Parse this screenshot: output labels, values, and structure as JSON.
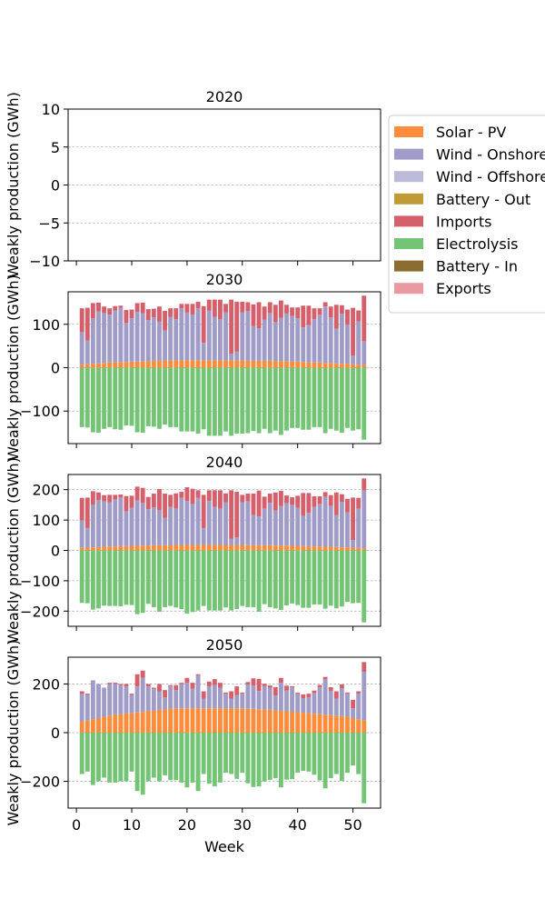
{
  "chart_data": {
    "type": "bar",
    "stacked": true,
    "xlabel": "Week",
    "ylabel": "Weakly production (GWh)",
    "xlim": [
      -1.5,
      55
    ],
    "xticks": [
      0,
      10,
      20,
      30,
      40,
      50
    ],
    "weeks_start": 1,
    "legend": {
      "placement": "right, outside top panel",
      "entries": [
        {
          "name": "Solar - PV",
          "color": "#ff8c3a"
        },
        {
          "name": "Wind - Onshore",
          "color": "#a09cc8"
        },
        {
          "name": "Wind - Offshore",
          "color": "#bcbad9"
        },
        {
          "name": "Battery - Out",
          "color": "#bf9b37"
        },
        {
          "name": "Imports",
          "color": "#d5606b"
        },
        {
          "name": "Electrolysis",
          "color": "#74c476"
        },
        {
          "name": "Battery - In",
          "color": "#8c6d31"
        },
        {
          "name": "Exports",
          "color": "#e99a9f"
        }
      ]
    },
    "panels": [
      {
        "title": "2020",
        "ylim": [
          -10,
          10
        ],
        "yticks": [
          -10,
          -5,
          0,
          5,
          10
        ],
        "series": []
      },
      {
        "title": "2030",
        "ylim": [
          -175,
          175
        ],
        "yticks": [
          -100,
          0,
          100
        ],
        "series": [
          {
            "name": "Solar - PV",
            "values": [
              7,
              8,
              9,
              10,
              11,
              12,
              12,
              13,
              13,
              14,
              14,
              15,
              15,
              16,
              16,
              16,
              17,
              17,
              17,
              17,
              17,
              17,
              17,
              17,
              17,
              17,
              17,
              17,
              17,
              17,
              16,
              16,
              16,
              16,
              16,
              15,
              15,
              15,
              14,
              14,
              13,
              13,
              12,
              12,
              11,
              11,
              10,
              9,
              9,
              8,
              7,
              6
            ]
          },
          {
            "name": "Wind - Onshore",
            "values": [
              75,
              55,
              105,
              120,
              115,
              110,
              120,
              125,
              90,
              100,
              115,
              110,
              95,
              100,
              90,
              70,
              100,
              95,
              120,
              110,
              105,
              120,
              40,
              115,
              100,
              95,
              110,
              15,
              20,
              110,
              115,
              80,
              75,
              95,
              110,
              90,
              100,
              110,
              105,
              100,
              80,
              85,
              100,
              110,
              130,
              105,
              80,
              115,
              90,
              20,
              100,
              55
            ]
          },
          {
            "name": "Imports",
            "values": [
              55,
              75,
              35,
              20,
              15,
              15,
              10,
              5,
              30,
              20,
              20,
              25,
              25,
              20,
              35,
              45,
              20,
              25,
              10,
              20,
              25,
              15,
              85,
              25,
              40,
              45,
              20,
              125,
              115,
              25,
              20,
              50,
              60,
              30,
              25,
              40,
              40,
              20,
              20,
              25,
              50,
              45,
              25,
              15,
              10,
              25,
              55,
              20,
              35,
              110,
              25,
              105
            ]
          },
          {
            "name": "Electrolysis",
            "values": [
              -137,
              -138,
              -149,
              -150,
              -141,
              -137,
              -142,
              -143,
              -133,
              -134,
              -149,
              -150,
              -135,
              -136,
              -141,
              -131,
              -137,
              -137,
              -147,
              -147,
              -147,
              -152,
              -142,
              -157,
              -157,
              -157,
              -147,
              -157,
              -152,
              -152,
              -151,
              -146,
              -151,
              -141,
              -151,
              -145,
              -155,
              -145,
              -139,
              -139,
              -143,
              -143,
              -137,
              -137,
              -151,
              -141,
              -145,
              -150,
              -139,
              -145,
              -142,
              -166
            ]
          }
        ]
      },
      {
        "title": "2040",
        "ylim": [
          -250,
          250
        ],
        "yticks": [
          -200,
          -100,
          0,
          100,
          200
        ],
        "series": [
          {
            "name": "Solar - PV",
            "values": [
              8,
              9,
              10,
              11,
              12,
              13,
              13,
              14,
              14,
              15,
              15,
              16,
              16,
              17,
              17,
              17,
              18,
              18,
              18,
              18,
              18,
              18,
              18,
              18,
              18,
              18,
              18,
              18,
              18,
              18,
              17,
              17,
              17,
              17,
              17,
              16,
              16,
              16,
              15,
              15,
              14,
              14,
              13,
              13,
              12,
              12,
              11,
              10,
              10,
              9,
              8,
              7
            ]
          },
          {
            "name": "Wind - Onshore",
            "values": [
              90,
              65,
              140,
              155,
              150,
              145,
              155,
              160,
              115,
              125,
              150,
              140,
              120,
              125,
              115,
              90,
              125,
              120,
              155,
              145,
              135,
              155,
              55,
              145,
              125,
              120,
              140,
              20,
              25,
              140,
              145,
              100,
              95,
              120,
              140,
              115,
              130,
              140,
              135,
              125,
              100,
              110,
              130,
              140,
              165,
              135,
              105,
              150,
              115,
              25,
              130,
              190
            ]
          },
          {
            "name": "Imports",
            "values": [
              75,
              100,
              45,
              25,
              20,
              25,
              15,
              10,
              50,
              40,
              45,
              50,
              40,
              45,
              70,
              80,
              40,
              50,
              20,
              45,
              50,
              25,
              110,
              35,
              55,
              60,
              30,
              160,
              150,
              25,
              25,
              70,
              85,
              40,
              30,
              60,
              50,
              25,
              25,
              40,
              75,
              65,
              35,
              25,
              15,
              35,
              75,
              25,
              45,
              140,
              35,
              40
            ]
          },
          {
            "name": "Electrolysis",
            "values": [
              -173,
              -174,
              -195,
              -191,
              -182,
              -183,
              -183,
              -184,
              -179,
              -180,
              -210,
              -206,
              -176,
              -187,
              -202,
              -187,
              -183,
              -188,
              -193,
              -208,
              -203,
              -198,
              -183,
              -198,
              -198,
              -198,
              -188,
              -198,
              -193,
              -183,
              -187,
              -187,
              -202,
              -177,
              -187,
              -191,
              -196,
              -181,
              -175,
              -180,
              -189,
              -189,
              -178,
              -178,
              -192,
              -182,
              -191,
              -185,
              -170,
              -174,
              -173,
              -237
            ]
          }
        ]
      },
      {
        "title": "2050",
        "ylim": [
          -310,
          310
        ],
        "yticks": [
          -200,
          0,
          200
        ],
        "series": [
          {
            "name": "Solar - PV",
            "values": [
              45,
              50,
              55,
              60,
              65,
              70,
              75,
              75,
              80,
              80,
              85,
              85,
              90,
              90,
              95,
              95,
              100,
              100,
              100,
              100,
              100,
              100,
              100,
              100,
              100,
              100,
              100,
              100,
              100,
              100,
              98,
              98,
              96,
              96,
              94,
              92,
              90,
              88,
              86,
              84,
              82,
              80,
              78,
              76,
              74,
              72,
              70,
              68,
              65,
              60,
              55,
              50
            ]
          },
          {
            "name": "Wind - Onshore",
            "values": [
              115,
              105,
              160,
              140,
              120,
              130,
              125,
              120,
              110,
              75,
              105,
              140,
              100,
              90,
              75,
              50,
              90,
              75,
              100,
              105,
              80,
              135,
              40,
              90,
              95,
              85,
              60,
              40,
              55,
              60,
              100,
              95,
              75,
              95,
              90,
              60,
              115,
              85,
              100,
              75,
              60,
              65,
              85,
              110,
              145,
              100,
              70,
              115,
              95,
              40,
              105,
              200
            ]
          },
          {
            "name": "Imports",
            "values": [
              10,
              5,
              0,
              0,
              0,
              5,
              5,
              5,
              10,
              5,
              50,
              30,
              10,
              5,
              30,
              30,
              5,
              20,
              5,
              20,
              25,
              5,
              30,
              20,
              25,
              20,
              5,
              30,
              35,
              5,
              10,
              30,
              50,
              10,
              10,
              35,
              20,
              20,
              5,
              5,
              15,
              15,
              10,
              10,
              10,
              15,
              30,
              15,
              5,
              35,
              10,
              40
            ]
          },
          {
            "name": "Electrolysis",
            "values": [
              -170,
              -160,
              -215,
              -200,
              -185,
              -205,
              -205,
              -200,
              -200,
              -160,
              -240,
              -255,
              -200,
              -185,
              -200,
              -175,
              -195,
              -195,
              -205,
              -225,
              -205,
              -240,
              -170,
              -210,
              -220,
              -205,
              -165,
              -170,
              -190,
              -165,
              -208,
              -223,
              -221,
              -201,
              -194,
              -187,
              -225,
              -193,
              -191,
              -164,
              -157,
              -160,
              -173,
              -196,
              -229,
              -187,
              -170,
              -198,
              -165,
              -135,
              -170,
              -290
            ]
          }
        ]
      }
    ]
  }
}
